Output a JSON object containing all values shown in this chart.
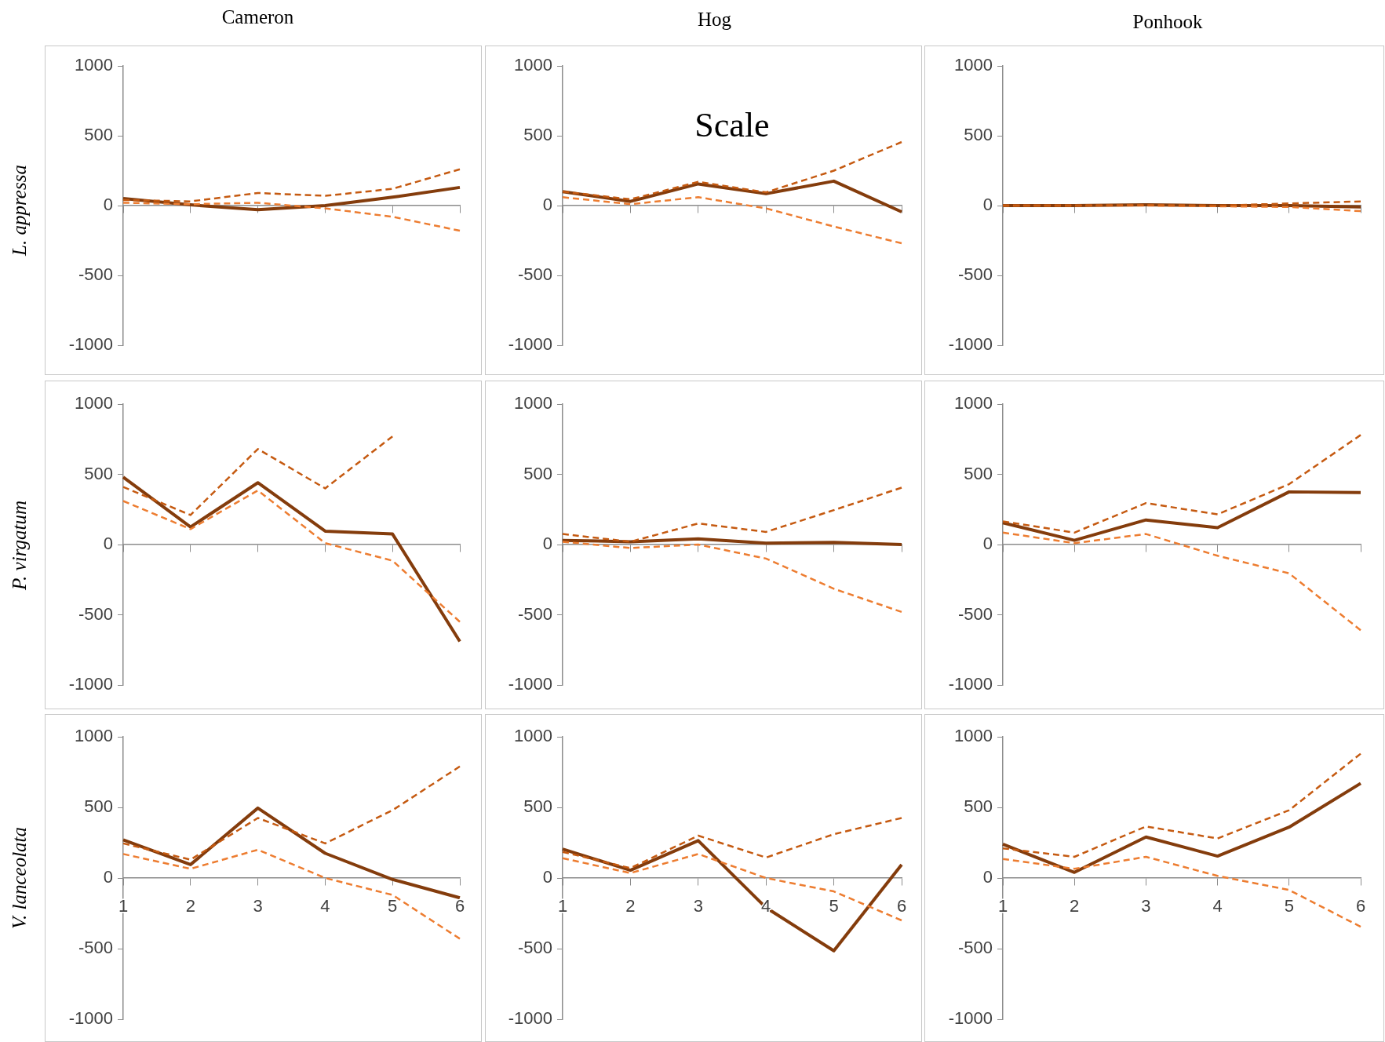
{
  "chart_data": [
    {
      "type": "line",
      "title": "Cameron",
      "ylabel": "L. appressa",
      "categories": [
        "1",
        "2",
        "3",
        "4",
        "5",
        "6"
      ],
      "series": [
        {
          "color": "#c55a11",
          "line_style": "dashed",
          "values": [
            40,
            30,
            90,
            70,
            120,
            260
          ]
        },
        {
          "color": "#ed7d31",
          "line_style": "dashed",
          "values": [
            20,
            10,
            20,
            -20,
            -80,
            -180
          ]
        },
        {
          "color": "#843c0c",
          "line_style": "solid",
          "values": [
            50,
            5,
            -30,
            0,
            60,
            130
          ]
        }
      ],
      "ylim": [
        -1000,
        1000
      ],
      "yticks": [
        -1000,
        -500,
        0,
        500,
        1000
      ],
      "marker": "none",
      "tick_labels": "y"
    },
    {
      "type": "line",
      "title": "Hog",
      "annotations": [
        "Scale"
      ],
      "categories": [
        "1",
        "2",
        "3",
        "4",
        "5",
        "6"
      ],
      "series": [
        {
          "color": "#c55a11",
          "line_style": "dashed",
          "values": [
            100,
            45,
            170,
            95,
            250,
            455
          ]
        },
        {
          "color": "#ed7d31",
          "line_style": "dashed",
          "values": [
            60,
            10,
            60,
            -20,
            -150,
            -270
          ]
        },
        {
          "color": "#843c0c",
          "line_style": "solid",
          "values": [
            100,
            30,
            155,
            85,
            175,
            -45
          ]
        }
      ],
      "ylim": [
        -1000,
        1000
      ],
      "yticks": [
        -1000,
        -500,
        0,
        500,
        1000
      ],
      "marker": "none",
      "tick_labels": "y"
    },
    {
      "type": "line",
      "title": "Ponhook",
      "categories": [
        "1",
        "2",
        "3",
        "4",
        "5",
        "6"
      ],
      "series": [
        {
          "color": "#c55a11",
          "line_style": "dashed",
          "values": [
            0,
            0,
            5,
            0,
            15,
            30
          ]
        },
        {
          "color": "#ed7d31",
          "line_style": "dashed",
          "values": [
            0,
            0,
            0,
            -5,
            -10,
            -40
          ]
        },
        {
          "color": "#843c0c",
          "line_style": "solid",
          "values": [
            0,
            0,
            5,
            0,
            0,
            -10
          ]
        }
      ],
      "ylim": [
        -1000,
        1000
      ],
      "yticks": [
        -1000,
        -500,
        0,
        500,
        1000
      ],
      "marker": "none",
      "tick_labels": "y"
    },
    {
      "type": "line",
      "ylabel": "P. virgatum",
      "categories": [
        "1",
        "2",
        "3",
        "4",
        "5",
        "6"
      ],
      "series": [
        {
          "color": "#c55a11",
          "line_style": "dashed",
          "values": [
            410,
            210,
            680,
            400,
            770,
            null
          ]
        },
        {
          "color": "#ed7d31",
          "line_style": "dashed",
          "values": [
            310,
            110,
            385,
            10,
            -115,
            -550
          ]
        },
        {
          "color": "#843c0c",
          "line_style": "solid",
          "values": [
            480,
            125,
            440,
            95,
            75,
            -690
          ]
        }
      ],
      "ylim": [
        -1000,
        1000
      ],
      "yticks": [
        -1000,
        -500,
        0,
        500,
        1000
      ],
      "marker": "none",
      "tick_labels": "y"
    },
    {
      "type": "line",
      "categories": [
        "1",
        "2",
        "3",
        "4",
        "5",
        "6"
      ],
      "series": [
        {
          "color": "#c55a11",
          "line_style": "dashed",
          "values": [
            75,
            20,
            150,
            90,
            245,
            405
          ]
        },
        {
          "color": "#ed7d31",
          "line_style": "dashed",
          "values": [
            20,
            -25,
            0,
            -100,
            -315,
            -480
          ]
        },
        {
          "color": "#843c0c",
          "line_style": "solid",
          "values": [
            30,
            20,
            40,
            10,
            15,
            0
          ]
        }
      ],
      "ylim": [
        -1000,
        1000
      ],
      "yticks": [
        -1000,
        -500,
        0,
        500,
        1000
      ],
      "marker": "none",
      "tick_labels": "y"
    },
    {
      "type": "line",
      "categories": [
        "1",
        "2",
        "3",
        "4",
        "5",
        "6"
      ],
      "series": [
        {
          "color": "#c55a11",
          "line_style": "dashed",
          "values": [
            165,
            85,
            295,
            215,
            430,
            780
          ]
        },
        {
          "color": "#ed7d31",
          "line_style": "dashed",
          "values": [
            85,
            10,
            75,
            -80,
            -205,
            -610
          ]
        },
        {
          "color": "#843c0c",
          "line_style": "solid",
          "values": [
            155,
            30,
            175,
            120,
            375,
            370
          ]
        }
      ],
      "ylim": [
        -1000,
        1000
      ],
      "yticks": [
        -1000,
        -500,
        0,
        500,
        1000
      ],
      "marker": "none",
      "tick_labels": "y"
    },
    {
      "type": "line",
      "ylabel": "V. lanceolata",
      "categories": [
        "1",
        "2",
        "3",
        "4",
        "5",
        "6"
      ],
      "series": [
        {
          "color": "#c55a11",
          "line_style": "dashed",
          "values": [
            245,
            130,
            425,
            245,
            480,
            790
          ]
        },
        {
          "color": "#ed7d31",
          "line_style": "dashed",
          "values": [
            170,
            65,
            200,
            0,
            -120,
            -430
          ]
        },
        {
          "color": "#843c0c",
          "line_style": "solid",
          "values": [
            270,
            95,
            495,
            175,
            -10,
            -140
          ]
        }
      ],
      "ylim": [
        -1000,
        1000
      ],
      "yticks": [
        -1000,
        -500,
        0,
        500,
        1000
      ],
      "marker": "none"
    },
    {
      "type": "line",
      "categories": [
        "1",
        "2",
        "3",
        "4",
        "5",
        "6"
      ],
      "series": [
        {
          "color": "#c55a11",
          "line_style": "dashed",
          "values": [
            185,
            70,
            300,
            145,
            310,
            425
          ]
        },
        {
          "color": "#ed7d31",
          "line_style": "dashed",
          "values": [
            140,
            35,
            170,
            0,
            -95,
            -300
          ]
        },
        {
          "color": "#843c0c",
          "line_style": "solid",
          "values": [
            205,
            55,
            265,
            -210,
            -515,
            95
          ]
        }
      ],
      "ylim": [
        -1000,
        1000
      ],
      "yticks": [
        -1000,
        -500,
        0,
        500,
        1000
      ],
      "marker": "none"
    },
    {
      "type": "line",
      "categories": [
        "1",
        "2",
        "3",
        "4",
        "5",
        "6"
      ],
      "series": [
        {
          "color": "#c55a11",
          "line_style": "dashed",
          "values": [
            210,
            150,
            365,
            280,
            480,
            880
          ]
        },
        {
          "color": "#ed7d31",
          "line_style": "dashed",
          "values": [
            135,
            65,
            150,
            15,
            -85,
            -345
          ]
        },
        {
          "color": "#843c0c",
          "line_style": "solid",
          "values": [
            240,
            40,
            290,
            155,
            360,
            670
          ]
        }
      ],
      "ylim": [
        -1000,
        1000
      ],
      "yticks": [
        -1000,
        -500,
        0,
        500,
        1000
      ],
      "marker": "none"
    }
  ]
}
